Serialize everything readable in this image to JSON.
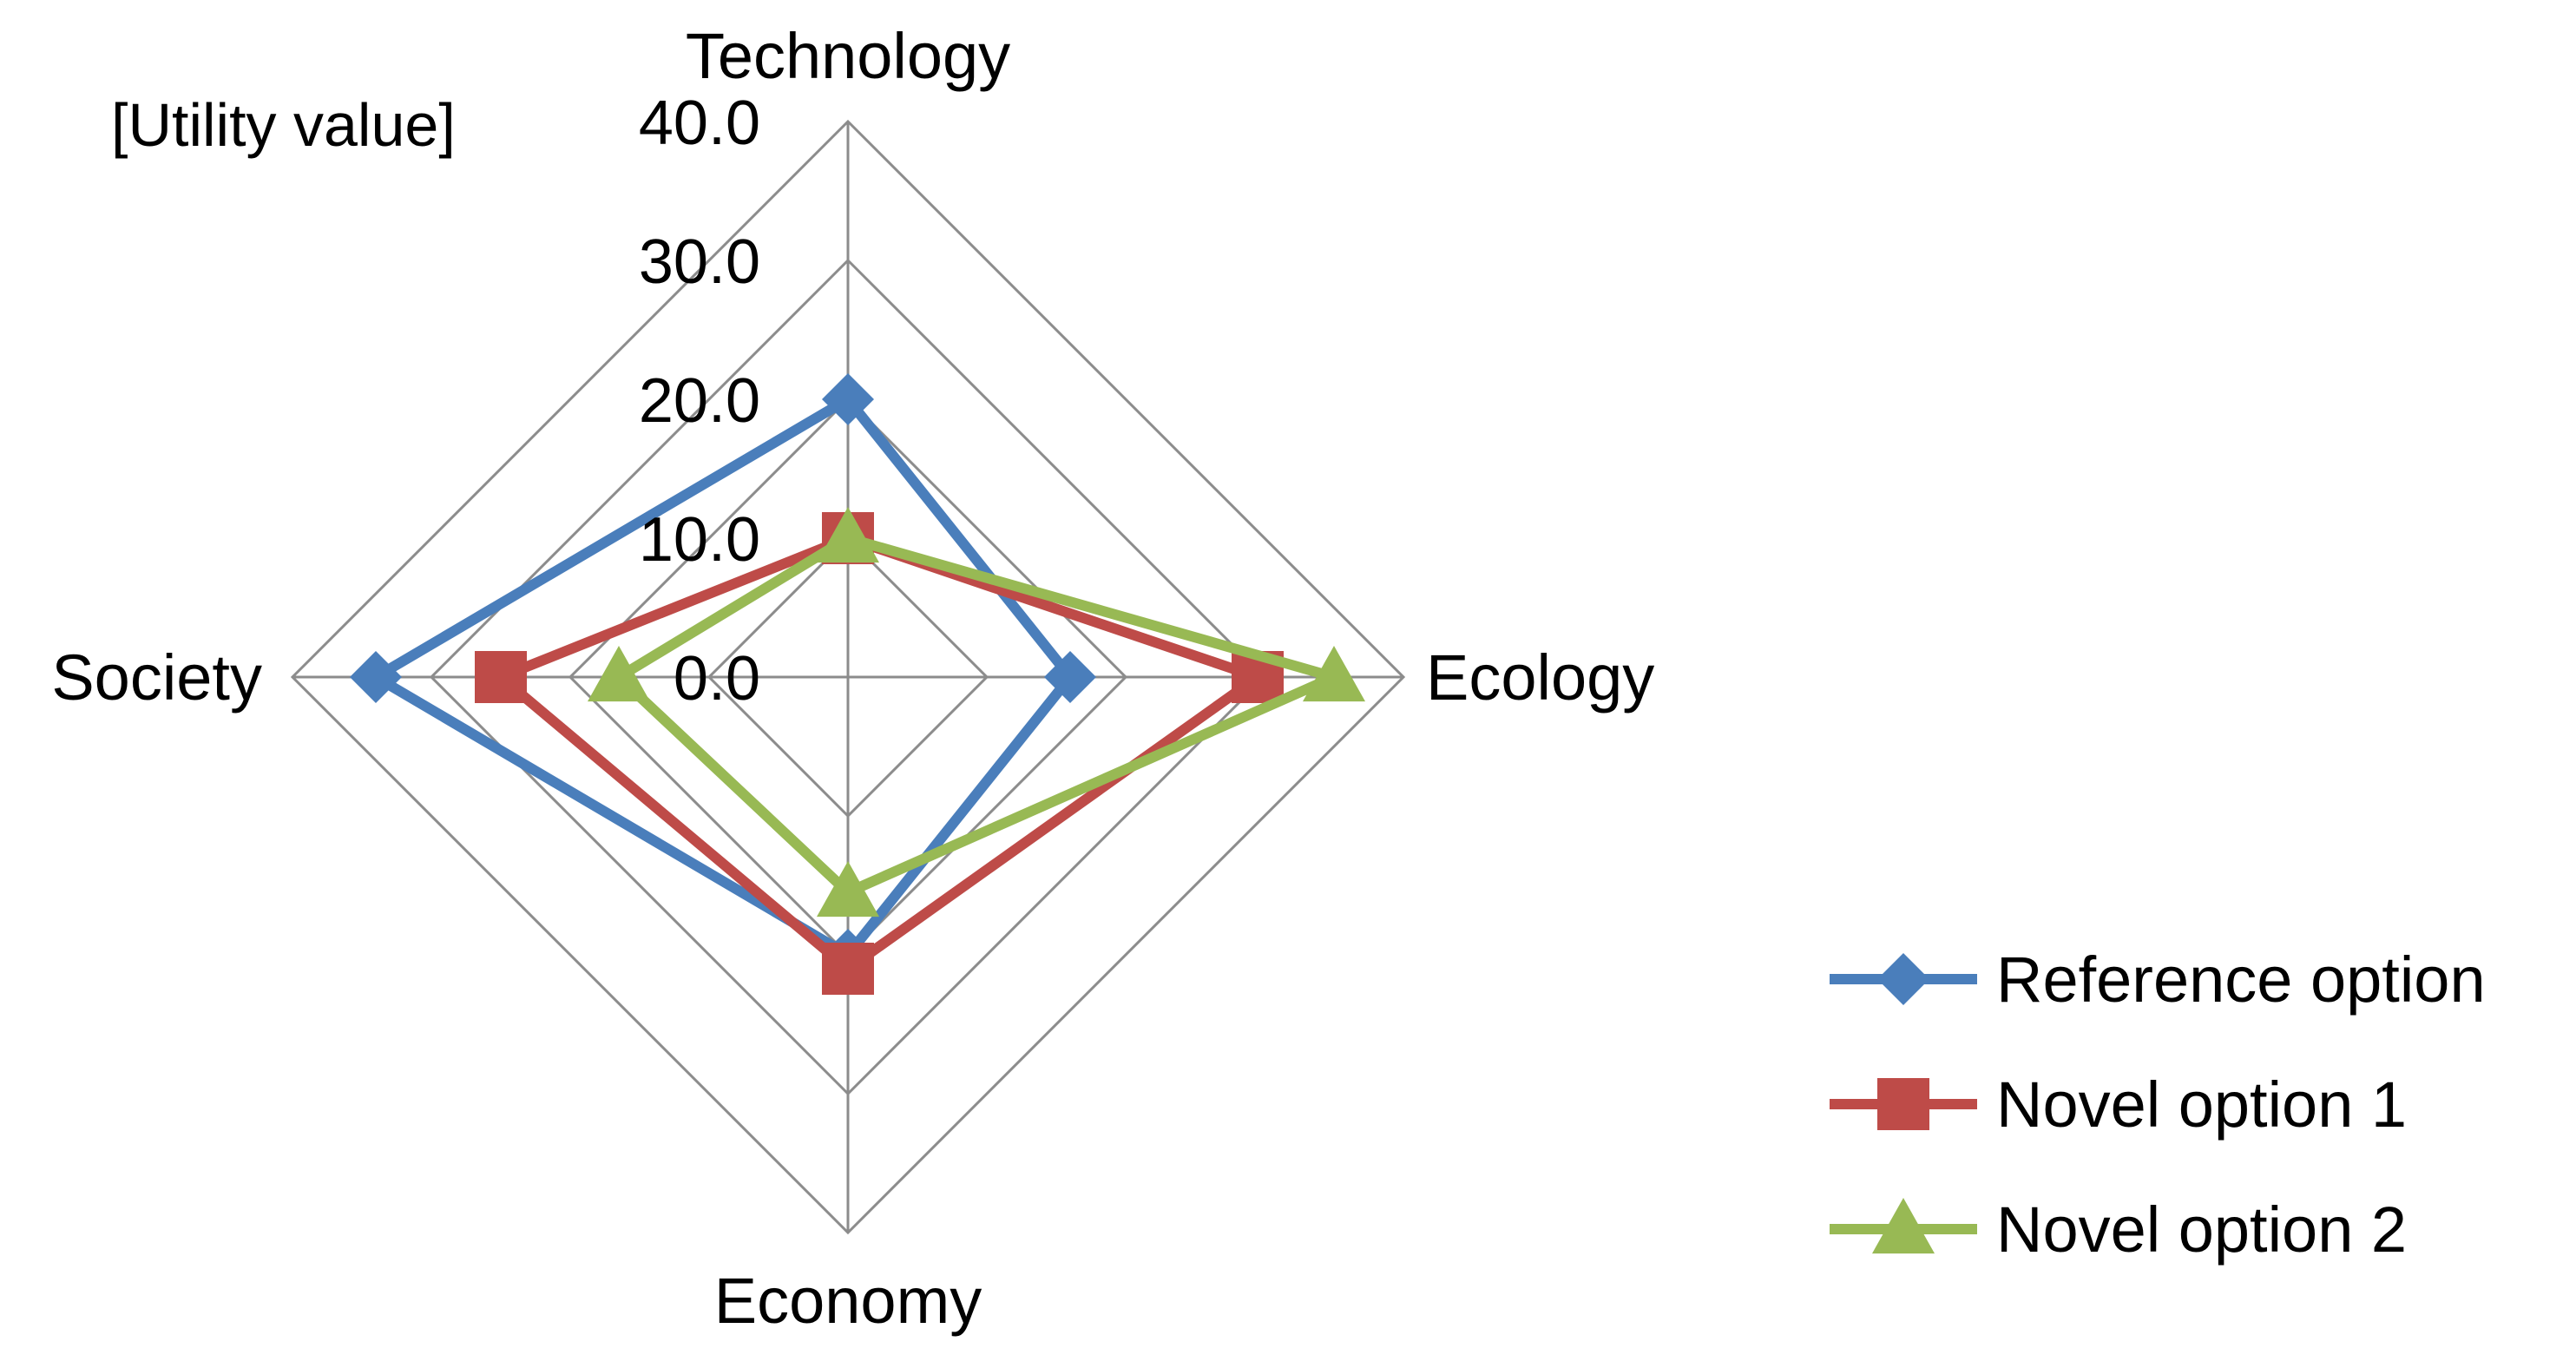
{
  "chart_data": {
    "type": "radar",
    "unit_label": "[Utility value]",
    "axes": [
      "Technology",
      "Ecology",
      "Economy",
      "Society"
    ],
    "range": [
      0,
      40
    ],
    "ticks": [
      0,
      10,
      20,
      30,
      40
    ],
    "tick_labels": [
      "0.0",
      "10.0",
      "20.0",
      "30.0",
      "40.0"
    ],
    "grid": true,
    "legend_position": "bottom-right",
    "series": [
      {
        "name": "Reference option",
        "values": [
          20,
          16,
          20,
          34
        ],
        "color": "#4a7ebb",
        "marker": "diamond"
      },
      {
        "name": "Novel option 1",
        "values": [
          10,
          29.5,
          21,
          25
        ],
        "color": "#be4b48",
        "marker": "square"
      },
      {
        "name": "Novel option 2",
        "values": [
          10,
          35,
          15.5,
          16.5
        ],
        "color": "#98b954",
        "marker": "triangle"
      }
    ]
  }
}
